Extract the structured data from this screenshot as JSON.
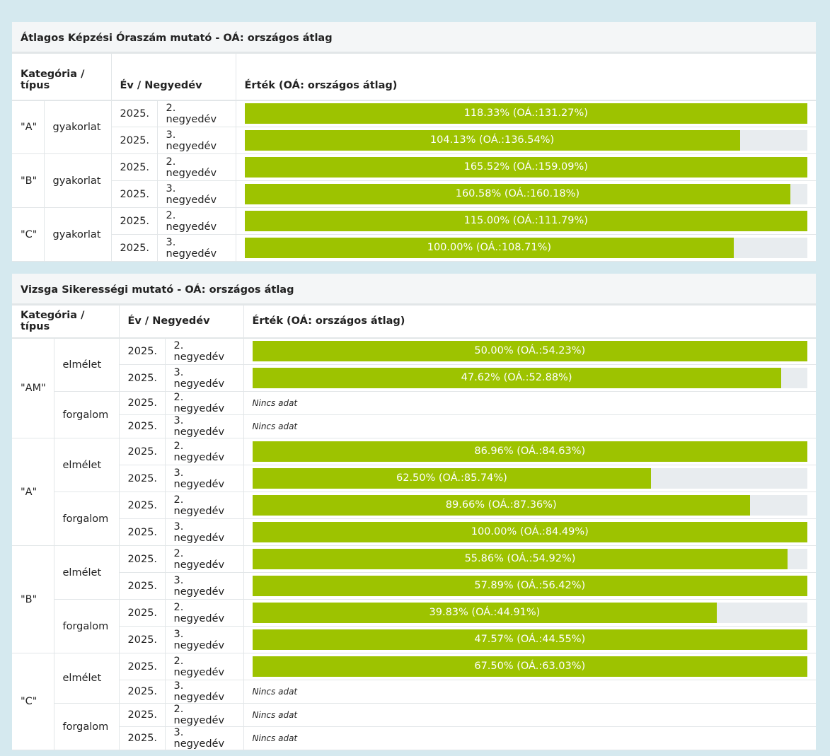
{
  "tables": [
    {
      "title": "Átlagos Képzési Óraszám mutató - OÁ: országos átlag",
      "headers": [
        "Kategória / típus",
        "Év / Negyedév",
        "Érték (OÁ: országos átlag)"
      ],
      "groups": [
        {
          "category": "\"A\"",
          "subgroups": [
            {
              "type": "gyakorlat",
              "rows": [
                {
                  "year": "2025.",
                  "quarter": "2. negyedév",
                  "value": 118.33,
                  "label": "118.33% (OÁ.:131.27%)"
                },
                {
                  "year": "2025.",
                  "quarter": "3. negyedév",
                  "value": 104.13,
                  "label": "104.13% (OÁ.:136.54%)"
                }
              ]
            }
          ]
        },
        {
          "category": "\"B\"",
          "subgroups": [
            {
              "type": "gyakorlat",
              "rows": [
                {
                  "year": "2025.",
                  "quarter": "2. negyedév",
                  "value": 165.52,
                  "label": "165.52% (OÁ.:159.09%)"
                },
                {
                  "year": "2025.",
                  "quarter": "3. negyedév",
                  "value": 160.58,
                  "label": "160.58% (OÁ.:160.18%)"
                }
              ]
            }
          ]
        },
        {
          "category": "\"C\"",
          "subgroups": [
            {
              "type": "gyakorlat",
              "rows": [
                {
                  "year": "2025.",
                  "quarter": "2. negyedév",
                  "value": 115.0,
                  "label": "115.00% (OÁ.:111.79%)"
                },
                {
                  "year": "2025.",
                  "quarter": "3. negyedév",
                  "value": 100.0,
                  "label": "100.00% (OÁ.:108.71%)"
                }
              ]
            }
          ]
        }
      ]
    },
    {
      "title": "Vizsga Sikerességi mutató - OÁ: országos átlag",
      "headers": [
        "Kategória / típus",
        "Év / Negyedév",
        "Érték (OÁ: országos átlag)"
      ],
      "groups": [
        {
          "category": "\"AM\"",
          "subgroups": [
            {
              "type": "elmélet",
              "rows": [
                {
                  "year": "2025.",
                  "quarter": "2. negyedév",
                  "value": 50.0,
                  "label": "50.00% (OÁ.:54.23%)"
                },
                {
                  "year": "2025.",
                  "quarter": "3. negyedév",
                  "value": 47.62,
                  "label": "47.62% (OÁ.:52.88%)"
                }
              ]
            },
            {
              "type": "forgalom",
              "rows": [
                {
                  "year": "2025.",
                  "quarter": "2. negyedév",
                  "note": "Nincs adat"
                },
                {
                  "year": "2025.",
                  "quarter": "3. negyedév",
                  "note": "Nincs adat"
                }
              ]
            }
          ]
        },
        {
          "category": "\"A\"",
          "subgroups": [
            {
              "type": "elmélet",
              "rows": [
                {
                  "year": "2025.",
                  "quarter": "2. negyedév",
                  "value": 86.96,
                  "label": "86.96% (OÁ.:84.63%)"
                },
                {
                  "year": "2025.",
                  "quarter": "3. negyedév",
                  "value": 62.5,
                  "label": "62.50% (OÁ.:85.74%)"
                }
              ]
            },
            {
              "type": "forgalom",
              "rows": [
                {
                  "year": "2025.",
                  "quarter": "2. negyedév",
                  "value": 89.66,
                  "label": "89.66% (OÁ.:87.36%)"
                },
                {
                  "year": "2025.",
                  "quarter": "3. negyedév",
                  "value": 100.0,
                  "label": "100.00% (OÁ.:84.49%)"
                }
              ]
            }
          ]
        },
        {
          "category": "\"B\"",
          "subgroups": [
            {
              "type": "elmélet",
              "rows": [
                {
                  "year": "2025.",
                  "quarter": "2. negyedév",
                  "value": 55.86,
                  "label": "55.86% (OÁ.:54.92%)"
                },
                {
                  "year": "2025.",
                  "quarter": "3. negyedév",
                  "value": 57.89,
                  "label": "57.89% (OÁ.:56.42%)"
                }
              ]
            },
            {
              "type": "forgalom",
              "rows": [
                {
                  "year": "2025.",
                  "quarter": "2. negyedév",
                  "value": 39.83,
                  "label": "39.83% (OÁ.:44.91%)"
                },
                {
                  "year": "2025.",
                  "quarter": "3. negyedév",
                  "value": 47.57,
                  "label": "47.57% (OÁ.:44.55%)"
                }
              ]
            }
          ]
        },
        {
          "category": "\"C\"",
          "subgroups": [
            {
              "type": "elmélet",
              "rows": [
                {
                  "year": "2025.",
                  "quarter": "2. negyedév",
                  "value": 67.5,
                  "label": "67.50% (OÁ.:63.03%)"
                },
                {
                  "year": "2025.",
                  "quarter": "3. negyedév",
                  "note": "Nincs adat"
                }
              ]
            },
            {
              "type": "forgalom",
              "rows": [
                {
                  "year": "2025.",
                  "quarter": "2. negyedév",
                  "note": "Nincs adat"
                },
                {
                  "year": "2025.",
                  "quarter": "3. negyedév",
                  "note": "Nincs adat"
                }
              ]
            }
          ]
        }
      ]
    }
  ]
}
